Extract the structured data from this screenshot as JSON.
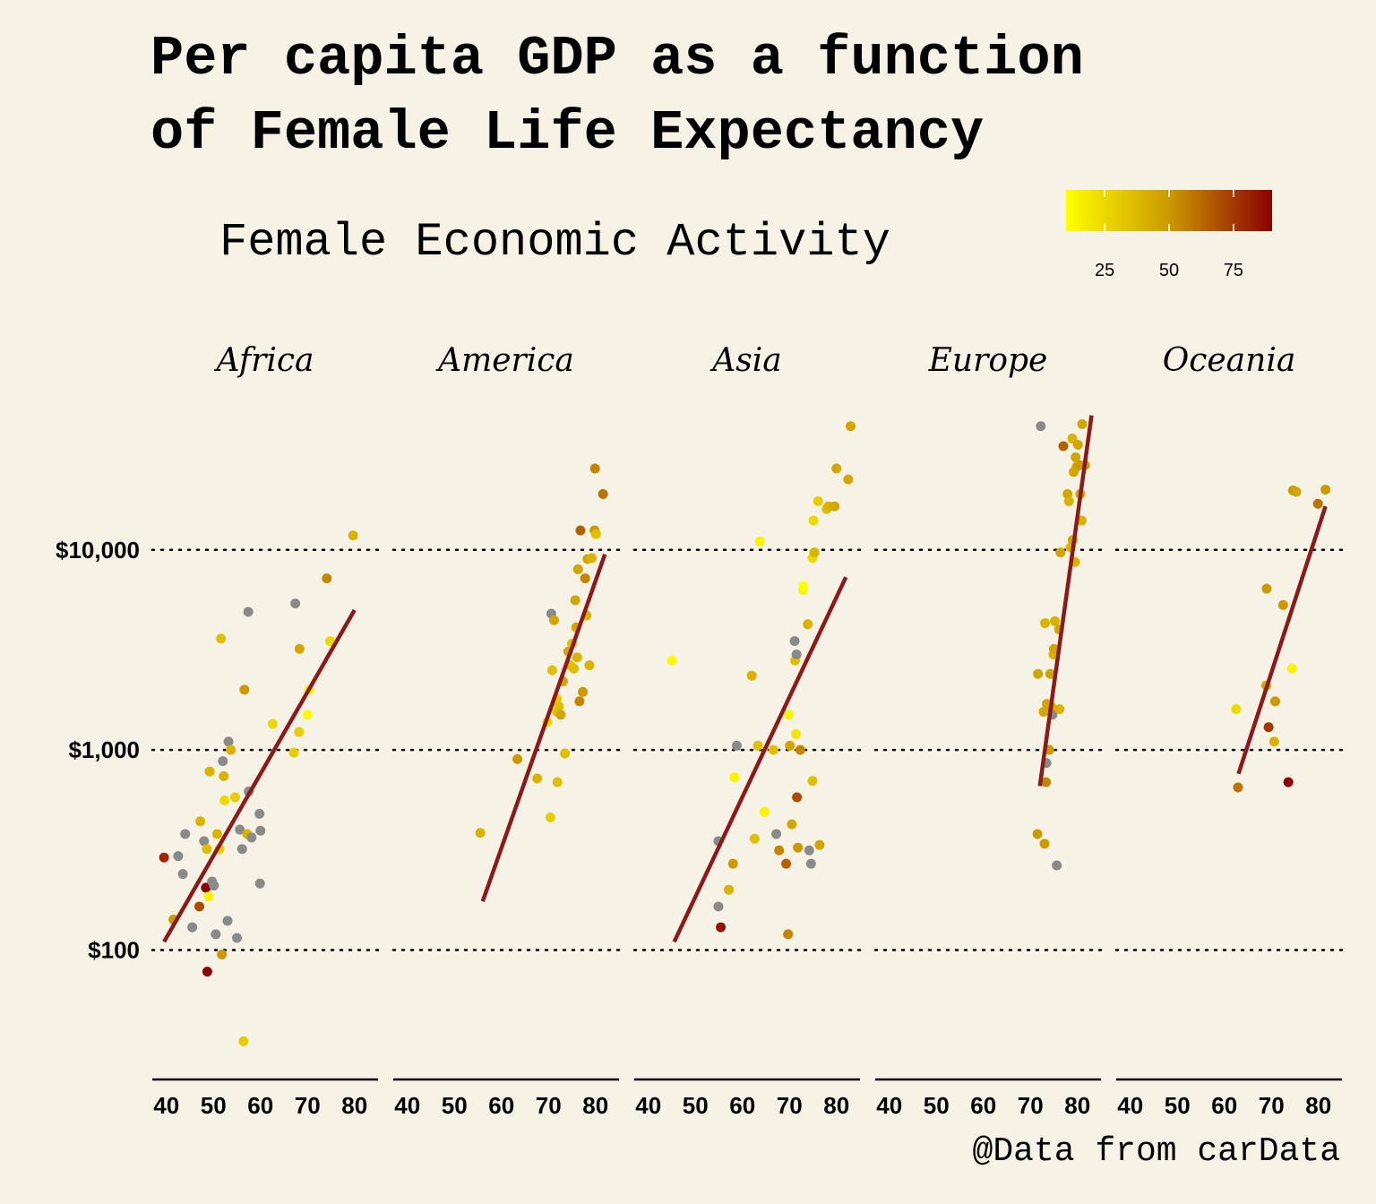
{
  "title_lines": [
    "Per capita GDP as a function",
    "of Female Life Expectancy"
  ],
  "legend": {
    "title": "Female Economic Activity",
    "ticks": [
      "25",
      "50",
      "75"
    ],
    "tick_values": [
      25,
      50,
      75
    ],
    "range": [
      10,
      90
    ],
    "low_color": "#ffff00",
    "mid_color": "#cc9900",
    "high_color": "#8b0000"
  },
  "caption": "@Data from carData",
  "colors": {
    "background": "#f7f2e6",
    "trend_line": "#8b1a1a",
    "missing_point": "#8a8a8a"
  },
  "chart_data": {
    "type": "scatter",
    "facet_by": "region",
    "x_var": "Female Life Expectancy",
    "y_var": "Per capita GDP",
    "y_scale": "log10",
    "xlim": [
      37,
      85
    ],
    "ylim": [
      25,
      60000
    ],
    "x_ticks": [
      40,
      50,
      60,
      70,
      80
    ],
    "x_tick_labels": [
      "40",
      "50",
      "60",
      "70",
      "80"
    ],
    "y_ticks": [
      100,
      1000,
      10000
    ],
    "y_tick_labels": [
      "$100",
      "$1,000",
      "$10,000"
    ],
    "grid": "horizontal dotted at y ticks",
    "legend_position": "top",
    "facets": [
      {
        "name": "Africa",
        "trend": [
          [
            39.5,
            110
          ],
          [
            80,
            5000
          ]
        ],
        "points": [
          [
            39.5,
            290,
            80
          ],
          [
            41.5,
            142,
            50
          ],
          [
            42.5,
            295,
            null
          ],
          [
            43.5,
            240,
            null
          ],
          [
            44,
            380,
            null
          ],
          [
            45.5,
            130,
            null
          ],
          [
            47,
            165,
            70
          ],
          [
            47.2,
            440,
            40
          ],
          [
            48,
            350,
            null
          ],
          [
            48.4,
            205,
            90
          ],
          [
            48.6,
            320,
            35
          ],
          [
            48.7,
            78,
            90
          ],
          [
            49,
            185,
            15
          ],
          [
            49.2,
            780,
            40
          ],
          [
            49.7,
            220,
            null
          ],
          [
            50.1,
            210,
            null
          ],
          [
            50.5,
            120,
            null
          ],
          [
            50.8,
            380,
            40
          ],
          [
            51.3,
            320,
            30
          ],
          [
            51.6,
            3600,
            35
          ],
          [
            51.8,
            95,
            50
          ],
          [
            52,
            880,
            null
          ],
          [
            52.2,
            740,
            40
          ],
          [
            52.4,
            560,
            25
          ],
          [
            53,
            140,
            null
          ],
          [
            53.2,
            1100,
            null
          ],
          [
            53.7,
            1000,
            40
          ],
          [
            54.6,
            580,
            30
          ],
          [
            55,
            115,
            null
          ],
          [
            55.6,
            400,
            null
          ],
          [
            56.1,
            320,
            null
          ],
          [
            56.6,
            2000,
            50
          ],
          [
            56.4,
            35,
            30
          ],
          [
            57.2,
            380,
            40
          ],
          [
            57.4,
            4900,
            null
          ],
          [
            57.5,
            620,
            null
          ],
          [
            58.1,
            365,
            null
          ],
          [
            59.8,
            480,
            null
          ],
          [
            59.9,
            215,
            null
          ],
          [
            60,
            395,
            null
          ],
          [
            62.6,
            1350,
            25
          ],
          [
            67.1,
            970,
            30
          ],
          [
            67.4,
            5400,
            null
          ],
          [
            68.2,
            1230,
            30
          ],
          [
            68.3,
            3200,
            45
          ],
          [
            70,
            1500,
            12
          ],
          [
            70.4,
            2000,
            15
          ],
          [
            74.1,
            7200,
            55
          ],
          [
            74.8,
            3500,
            25
          ],
          [
            79.7,
            11800,
            40
          ]
        ]
      },
      {
        "name": "America",
        "trend": [
          [
            56,
            175
          ],
          [
            82,
            9500
          ]
        ],
        "points": [
          [
            55.5,
            385,
            40
          ],
          [
            63.4,
            900,
            50
          ],
          [
            67.6,
            720,
            40
          ],
          [
            69.8,
            1380,
            25
          ],
          [
            70.4,
            460,
            30
          ],
          [
            70.6,
            4800,
            null
          ],
          [
            70.8,
            2500,
            35
          ],
          [
            71.2,
            4450,
            45
          ],
          [
            71.8,
            1550,
            35
          ],
          [
            71.8,
            1800,
            30
          ],
          [
            71.9,
            690,
            35
          ],
          [
            72.2,
            1650,
            35
          ],
          [
            72.6,
            1500,
            45
          ],
          [
            73.1,
            2200,
            45
          ],
          [
            73.5,
            960,
            35
          ],
          [
            74.2,
            3100,
            45
          ],
          [
            74.6,
            2650,
            35
          ],
          [
            75,
            3400,
            35
          ],
          [
            75.4,
            2550,
            35
          ],
          [
            75.7,
            5600,
            45
          ],
          [
            75.9,
            4100,
            45
          ],
          [
            76.1,
            2900,
            40
          ],
          [
            76.3,
            8000,
            45
          ],
          [
            76.6,
            1750,
            55
          ],
          [
            76.8,
            12500,
            65
          ],
          [
            77.3,
            1950,
            50
          ],
          [
            77.8,
            7200,
            55
          ],
          [
            78.1,
            4700,
            40
          ],
          [
            78.3,
            9000,
            45
          ],
          [
            78.7,
            2650,
            40
          ],
          [
            79.2,
            9100,
            40
          ],
          [
            79.9,
            25500,
            55
          ],
          [
            79.8,
            12500,
            50
          ],
          [
            80.1,
            12000,
            35
          ],
          [
            81.6,
            19000,
            60
          ]
        ]
      },
      {
        "name": "Asia",
        "trend": [
          [
            45.5,
            110
          ],
          [
            82,
            7300
          ]
        ],
        "points": [
          [
            45,
            2800,
            12
          ],
          [
            54.9,
            165,
            null
          ],
          [
            54.9,
            350,
            null
          ],
          [
            55.4,
            130,
            85
          ],
          [
            57.1,
            200,
            40
          ],
          [
            58,
            270,
            50
          ],
          [
            58.3,
            730,
            15
          ],
          [
            58.8,
            1050,
            null
          ],
          [
            62,
            2350,
            40
          ],
          [
            62.6,
            360,
            35
          ],
          [
            63.3,
            1050,
            35
          ],
          [
            63.7,
            11000,
            15
          ],
          [
            64.7,
            490,
            15
          ],
          [
            66.6,
            1000,
            35
          ],
          [
            67.2,
            380,
            null
          ],
          [
            67.8,
            315,
            55
          ],
          [
            69.3,
            270,
            65
          ],
          [
            69.7,
            120,
            55
          ],
          [
            69.9,
            1500,
            15
          ],
          [
            70.1,
            1050,
            45
          ],
          [
            70.5,
            425,
            45
          ],
          [
            71.1,
            3500,
            null
          ],
          [
            71.2,
            2800,
            35
          ],
          [
            71.4,
            1200,
            20
          ],
          [
            71.5,
            3000,
            null
          ],
          [
            71.6,
            580,
            70
          ],
          [
            71.8,
            325,
            50
          ],
          [
            72.3,
            1000,
            55
          ],
          [
            72.9,
            6300,
            15
          ],
          [
            73,
            6600,
            10
          ],
          [
            73.9,
            4250,
            40
          ],
          [
            74.2,
            315,
            null
          ],
          [
            74.6,
            270,
            null
          ],
          [
            74.9,
            700,
            35
          ],
          [
            74.9,
            9100,
            25
          ],
          [
            75.1,
            14000,
            25
          ],
          [
            75.3,
            9700,
            40
          ],
          [
            76.1,
            17500,
            30
          ],
          [
            76.4,
            335,
            45
          ],
          [
            77.9,
            16000,
            35
          ],
          [
            78.3,
            16500,
            40
          ],
          [
            79.6,
            16500,
            45
          ],
          [
            80,
            25500,
            45
          ],
          [
            82.5,
            22500,
            45
          ],
          [
            83,
            41500,
            45
          ]
        ]
      },
      {
        "name": "Europe",
        "trend": [
          [
            72,
            660
          ],
          [
            83,
            47000
          ]
        ],
        "points": [
          [
            71.5,
            380,
            50
          ],
          [
            71.6,
            2400,
            45
          ],
          [
            72.2,
            41500,
            null
          ],
          [
            72.8,
            1550,
            45
          ],
          [
            73,
            340,
            50
          ],
          [
            73.1,
            4300,
            40
          ],
          [
            73.3,
            690,
            55
          ],
          [
            73.4,
            860,
            null
          ],
          [
            73.5,
            1700,
            45
          ],
          [
            74,
            1000,
            50
          ],
          [
            74.2,
            2400,
            45
          ],
          [
            74.4,
            1650,
            45
          ],
          [
            74.7,
            1500,
            null
          ],
          [
            74.9,
            3000,
            40
          ],
          [
            75,
            3200,
            45
          ],
          [
            75.2,
            4400,
            40
          ],
          [
            75.6,
            265,
            null
          ],
          [
            76.1,
            4000,
            45
          ],
          [
            76.2,
            1600,
            40
          ],
          [
            76.4,
            9700,
            45
          ],
          [
            77,
            33000,
            65
          ],
          [
            77.9,
            19000,
            45
          ],
          [
            78.2,
            17500,
            40
          ],
          [
            78.6,
            10300,
            40
          ],
          [
            78.9,
            36000,
            40
          ],
          [
            79,
            11200,
            45
          ],
          [
            79.2,
            24500,
            45
          ],
          [
            79.6,
            29000,
            45
          ],
          [
            79.5,
            8700,
            40
          ],
          [
            79.8,
            26000,
            45
          ],
          [
            80.1,
            33500,
            45
          ],
          [
            80.4,
            26500,
            50
          ],
          [
            80.6,
            19000,
            45
          ],
          [
            80.9,
            14000,
            40
          ],
          [
            81,
            42500,
            45
          ],
          [
            81.6,
            26500,
            50
          ]
        ]
      },
      {
        "name": "Oceania",
        "trend": [
          [
            63,
            760
          ],
          [
            81.5,
            16500
          ]
        ],
        "points": [
          [
            62.5,
            1600,
            25
          ],
          [
            62.9,
            650,
            60
          ],
          [
            68.9,
            2100,
            45
          ],
          [
            69,
            6400,
            50
          ],
          [
            69.4,
            1300,
            75
          ],
          [
            70.6,
            1100,
            40
          ],
          [
            70.8,
            1750,
            50
          ],
          [
            72.5,
            5300,
            50
          ],
          [
            73.6,
            690,
            90
          ],
          [
            74.4,
            2550,
            15
          ],
          [
            74.6,
            19800,
            50
          ],
          [
            75.3,
            19500,
            45
          ],
          [
            79.9,
            17000,
            60
          ],
          [
            81.5,
            20000,
            50
          ]
        ]
      }
    ]
  }
}
